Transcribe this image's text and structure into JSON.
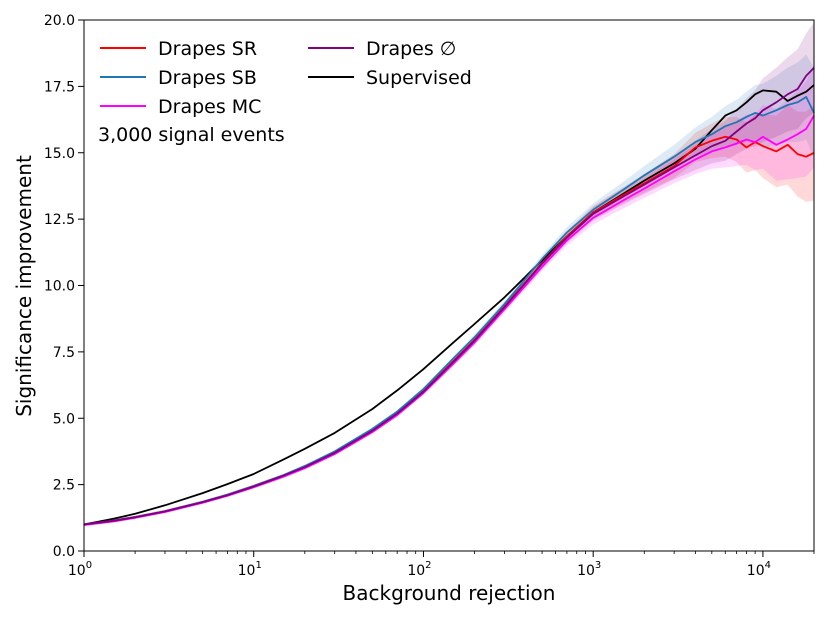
{
  "chart_data": {
    "type": "line",
    "title": "",
    "xlabel": "Background rejection",
    "ylabel": "Significance improvement",
    "xscale": "log",
    "xlim": [
      1,
      20000
    ],
    "ylim": [
      0,
      20
    ],
    "x_ticks": [
      {
        "value": 1,
        "base": "10",
        "exp": "0"
      },
      {
        "value": 10,
        "base": "10",
        "exp": "1"
      },
      {
        "value": 100,
        "base": "10",
        "exp": "2"
      },
      {
        "value": 1000,
        "base": "10",
        "exp": "3"
      },
      {
        "value": 10000,
        "base": "10",
        "exp": "4"
      }
    ],
    "y_ticks": [
      {
        "value": 0,
        "label": "0.0"
      },
      {
        "value": 2.5,
        "label": "2.5"
      },
      {
        "value": 5,
        "label": "5.0"
      },
      {
        "value": 7.5,
        "label": "7.5"
      },
      {
        "value": 10,
        "label": "10.0"
      },
      {
        "value": 12.5,
        "label": "12.5"
      },
      {
        "value": 15,
        "label": "15.0"
      },
      {
        "value": 17.5,
        "label": "17.5"
      },
      {
        "value": 20,
        "label": "20.0"
      }
    ],
    "annotation": "3,000 signal events",
    "legend_position": "top-left",
    "grid": false,
    "x": [
      1,
      1.5,
      2,
      3,
      5,
      7,
      10,
      15,
      20,
      30,
      50,
      70,
      100,
      150,
      200,
      300,
      500,
      700,
      1000,
      1500,
      2000,
      3000,
      4000,
      5000,
      6000,
      7000,
      8000,
      9000,
      10000,
      12000,
      14000,
      16000,
      18000,
      20000
    ],
    "series": [
      {
        "name": "Drapes SR",
        "color": "#ff0000",
        "band_color": "#ff0000",
        "values": [
          1.0,
          1.15,
          1.28,
          1.5,
          1.85,
          2.12,
          2.45,
          2.85,
          3.18,
          3.72,
          4.55,
          5.2,
          6.02,
          7.15,
          7.95,
          9.2,
          10.85,
          11.85,
          12.75,
          13.4,
          13.85,
          14.5,
          15.2,
          15.45,
          15.6,
          15.5,
          15.2,
          15.4,
          15.25,
          15.05,
          15.3,
          14.95,
          14.85,
          15.0
        ],
        "band": [
          0.05,
          0.05,
          0.05,
          0.05,
          0.05,
          0.05,
          0.05,
          0.05,
          0.05,
          0.05,
          0.06,
          0.06,
          0.07,
          0.08,
          0.1,
          0.12,
          0.15,
          0.2,
          0.25,
          0.3,
          0.35,
          0.45,
          0.55,
          0.65,
          0.75,
          0.85,
          0.95,
          1.05,
          1.2,
          1.35,
          1.5,
          1.6,
          1.7,
          1.8
        ]
      },
      {
        "name": "Drapes SB",
        "color": "#1f77b4",
        "band_color": "#1f77b4",
        "values": [
          1.0,
          1.15,
          1.28,
          1.5,
          1.85,
          2.12,
          2.45,
          2.86,
          3.2,
          3.75,
          4.6,
          5.25,
          6.1,
          7.25,
          8.05,
          9.3,
          11.0,
          12.0,
          12.85,
          13.6,
          14.15,
          14.85,
          15.4,
          15.7,
          16.0,
          16.15,
          16.35,
          16.5,
          16.4,
          16.6,
          16.8,
          16.9,
          17.1,
          16.5
        ],
        "band": [
          0.05,
          0.05,
          0.05,
          0.05,
          0.05,
          0.05,
          0.05,
          0.05,
          0.05,
          0.05,
          0.06,
          0.06,
          0.07,
          0.08,
          0.1,
          0.12,
          0.15,
          0.2,
          0.25,
          0.3,
          0.35,
          0.45,
          0.55,
          0.65,
          0.75,
          0.85,
          0.95,
          1.05,
          1.2,
          1.3,
          1.4,
          1.5,
          1.6,
          1.7
        ]
      },
      {
        "name": "Drapes MC",
        "color": "#ff00ff",
        "band_color": "#ff00ff",
        "values": [
          0.98,
          1.12,
          1.25,
          1.47,
          1.82,
          2.08,
          2.4,
          2.8,
          3.12,
          3.65,
          4.48,
          5.12,
          5.95,
          7.05,
          7.85,
          9.1,
          10.7,
          11.7,
          12.55,
          13.2,
          13.65,
          14.3,
          14.75,
          15.05,
          15.2,
          15.35,
          15.5,
          15.4,
          15.6,
          15.3,
          15.5,
          15.7,
          15.9,
          16.4
        ],
        "band": [
          0.05,
          0.05,
          0.05,
          0.05,
          0.05,
          0.05,
          0.05,
          0.05,
          0.05,
          0.05,
          0.06,
          0.06,
          0.07,
          0.08,
          0.1,
          0.12,
          0.15,
          0.2,
          0.25,
          0.3,
          0.35,
          0.45,
          0.55,
          0.65,
          0.75,
          0.85,
          0.95,
          1.05,
          1.2,
          1.35,
          1.5,
          1.65,
          1.8,
          1.95
        ]
      },
      {
        "name": "Drapes ∅",
        "color": "#800080",
        "band_color": "#800080",
        "values": [
          1.0,
          1.14,
          1.27,
          1.49,
          1.84,
          2.1,
          2.43,
          2.84,
          3.16,
          3.7,
          4.53,
          5.18,
          6.0,
          7.12,
          7.92,
          9.18,
          10.82,
          11.8,
          12.7,
          13.35,
          13.8,
          14.45,
          14.9,
          15.25,
          15.45,
          15.8,
          16.1,
          16.3,
          16.6,
          16.9,
          17.2,
          17.4,
          17.9,
          18.2
        ],
        "band": [
          0.05,
          0.05,
          0.05,
          0.05,
          0.05,
          0.05,
          0.05,
          0.05,
          0.05,
          0.05,
          0.06,
          0.06,
          0.07,
          0.08,
          0.1,
          0.12,
          0.15,
          0.2,
          0.25,
          0.3,
          0.35,
          0.45,
          0.55,
          0.65,
          0.75,
          0.85,
          0.95,
          1.05,
          1.2,
          1.3,
          1.4,
          1.5,
          1.6,
          1.7
        ]
      },
      {
        "name": "Supervised",
        "color": "#000000",
        "values": [
          1.0,
          1.22,
          1.4,
          1.72,
          2.18,
          2.52,
          2.9,
          3.45,
          3.85,
          4.45,
          5.35,
          6.05,
          6.85,
          7.85,
          8.55,
          9.55,
          10.95,
          11.85,
          12.75,
          13.45,
          13.95,
          14.6,
          15.15,
          15.85,
          16.4,
          16.6,
          16.9,
          17.2,
          17.35,
          17.3,
          16.95,
          17.15,
          17.3,
          17.55
        ]
      }
    ]
  }
}
